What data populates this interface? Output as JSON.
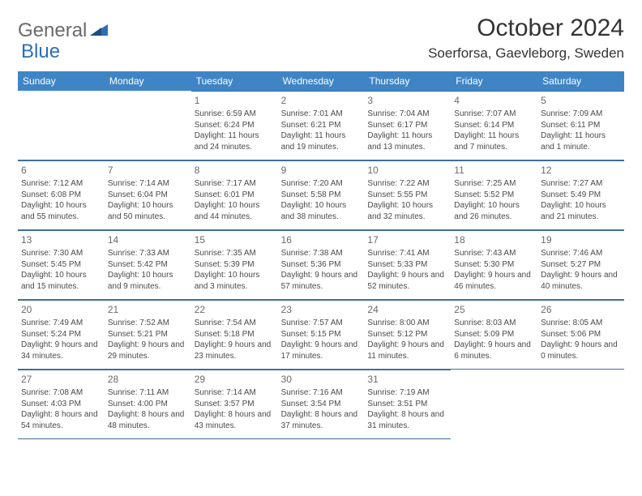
{
  "logo": {
    "general": "General",
    "blue": "Blue"
  },
  "header": {
    "month": "October 2024",
    "location": "Soerforsa, Gaevleborg, Sweden"
  },
  "colors": {
    "headerbar": "#3f85c6",
    "border": "#3f6f9b",
    "logoGray": "#6a6a6a",
    "logoBlue": "#2b6fb5"
  },
  "dayNames": [
    "Sunday",
    "Monday",
    "Tuesday",
    "Wednesday",
    "Thursday",
    "Friday",
    "Saturday"
  ],
  "firstDayOffset": 2,
  "days": [
    {
      "n": "1",
      "sr": "Sunrise: 6:59 AM",
      "ss": "Sunset: 6:24 PM",
      "dl": "Daylight: 11 hours and 24 minutes."
    },
    {
      "n": "2",
      "sr": "Sunrise: 7:01 AM",
      "ss": "Sunset: 6:21 PM",
      "dl": "Daylight: 11 hours and 19 minutes."
    },
    {
      "n": "3",
      "sr": "Sunrise: 7:04 AM",
      "ss": "Sunset: 6:17 PM",
      "dl": "Daylight: 11 hours and 13 minutes."
    },
    {
      "n": "4",
      "sr": "Sunrise: 7:07 AM",
      "ss": "Sunset: 6:14 PM",
      "dl": "Daylight: 11 hours and 7 minutes."
    },
    {
      "n": "5",
      "sr": "Sunrise: 7:09 AM",
      "ss": "Sunset: 6:11 PM",
      "dl": "Daylight: 11 hours and 1 minute."
    },
    {
      "n": "6",
      "sr": "Sunrise: 7:12 AM",
      "ss": "Sunset: 6:08 PM",
      "dl": "Daylight: 10 hours and 55 minutes."
    },
    {
      "n": "7",
      "sr": "Sunrise: 7:14 AM",
      "ss": "Sunset: 6:04 PM",
      "dl": "Daylight: 10 hours and 50 minutes."
    },
    {
      "n": "8",
      "sr": "Sunrise: 7:17 AM",
      "ss": "Sunset: 6:01 PM",
      "dl": "Daylight: 10 hours and 44 minutes."
    },
    {
      "n": "9",
      "sr": "Sunrise: 7:20 AM",
      "ss": "Sunset: 5:58 PM",
      "dl": "Daylight: 10 hours and 38 minutes."
    },
    {
      "n": "10",
      "sr": "Sunrise: 7:22 AM",
      "ss": "Sunset: 5:55 PM",
      "dl": "Daylight: 10 hours and 32 minutes."
    },
    {
      "n": "11",
      "sr": "Sunrise: 7:25 AM",
      "ss": "Sunset: 5:52 PM",
      "dl": "Daylight: 10 hours and 26 minutes."
    },
    {
      "n": "12",
      "sr": "Sunrise: 7:27 AM",
      "ss": "Sunset: 5:49 PM",
      "dl": "Daylight: 10 hours and 21 minutes."
    },
    {
      "n": "13",
      "sr": "Sunrise: 7:30 AM",
      "ss": "Sunset: 5:45 PM",
      "dl": "Daylight: 10 hours and 15 minutes."
    },
    {
      "n": "14",
      "sr": "Sunrise: 7:33 AM",
      "ss": "Sunset: 5:42 PM",
      "dl": "Daylight: 10 hours and 9 minutes."
    },
    {
      "n": "15",
      "sr": "Sunrise: 7:35 AM",
      "ss": "Sunset: 5:39 PM",
      "dl": "Daylight: 10 hours and 3 minutes."
    },
    {
      "n": "16",
      "sr": "Sunrise: 7:38 AM",
      "ss": "Sunset: 5:36 PM",
      "dl": "Daylight: 9 hours and 57 minutes."
    },
    {
      "n": "17",
      "sr": "Sunrise: 7:41 AM",
      "ss": "Sunset: 5:33 PM",
      "dl": "Daylight: 9 hours and 52 minutes."
    },
    {
      "n": "18",
      "sr": "Sunrise: 7:43 AM",
      "ss": "Sunset: 5:30 PM",
      "dl": "Daylight: 9 hours and 46 minutes."
    },
    {
      "n": "19",
      "sr": "Sunrise: 7:46 AM",
      "ss": "Sunset: 5:27 PM",
      "dl": "Daylight: 9 hours and 40 minutes."
    },
    {
      "n": "20",
      "sr": "Sunrise: 7:49 AM",
      "ss": "Sunset: 5:24 PM",
      "dl": "Daylight: 9 hours and 34 minutes."
    },
    {
      "n": "21",
      "sr": "Sunrise: 7:52 AM",
      "ss": "Sunset: 5:21 PM",
      "dl": "Daylight: 9 hours and 29 minutes."
    },
    {
      "n": "22",
      "sr": "Sunrise: 7:54 AM",
      "ss": "Sunset: 5:18 PM",
      "dl": "Daylight: 9 hours and 23 minutes."
    },
    {
      "n": "23",
      "sr": "Sunrise: 7:57 AM",
      "ss": "Sunset: 5:15 PM",
      "dl": "Daylight: 9 hours and 17 minutes."
    },
    {
      "n": "24",
      "sr": "Sunrise: 8:00 AM",
      "ss": "Sunset: 5:12 PM",
      "dl": "Daylight: 9 hours and 11 minutes."
    },
    {
      "n": "25",
      "sr": "Sunrise: 8:03 AM",
      "ss": "Sunset: 5:09 PM",
      "dl": "Daylight: 9 hours and 6 minutes."
    },
    {
      "n": "26",
      "sr": "Sunrise: 8:05 AM",
      "ss": "Sunset: 5:06 PM",
      "dl": "Daylight: 9 hours and 0 minutes."
    },
    {
      "n": "27",
      "sr": "Sunrise: 7:08 AM",
      "ss": "Sunset: 4:03 PM",
      "dl": "Daylight: 8 hours and 54 minutes."
    },
    {
      "n": "28",
      "sr": "Sunrise: 7:11 AM",
      "ss": "Sunset: 4:00 PM",
      "dl": "Daylight: 8 hours and 48 minutes."
    },
    {
      "n": "29",
      "sr": "Sunrise: 7:14 AM",
      "ss": "Sunset: 3:57 PM",
      "dl": "Daylight: 8 hours and 43 minutes."
    },
    {
      "n": "30",
      "sr": "Sunrise: 7:16 AM",
      "ss": "Sunset: 3:54 PM",
      "dl": "Daylight: 8 hours and 37 minutes."
    },
    {
      "n": "31",
      "sr": "Sunrise: 7:19 AM",
      "ss": "Sunset: 3:51 PM",
      "dl": "Daylight: 8 hours and 31 minutes."
    }
  ]
}
